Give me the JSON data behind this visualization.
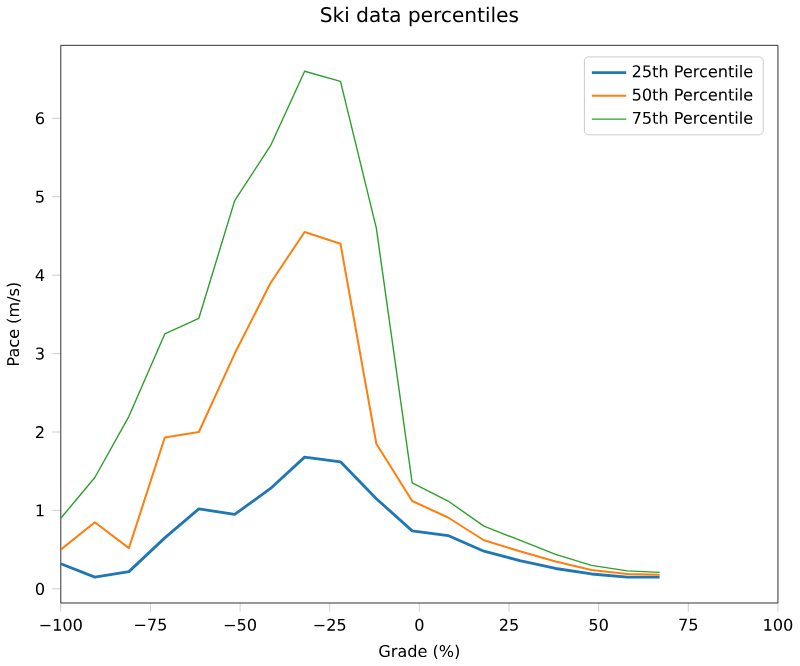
{
  "chart_data": {
    "type": "line",
    "title": "Ski data percentiles",
    "xlabel": "Grade (%)",
    "ylabel": "Pace (m/s)",
    "x": [
      -100,
      -90.5,
      -81,
      -71,
      -61.5,
      -51.5,
      -41.5,
      -32,
      -22,
      -12,
      -2,
      8,
      18,
      28,
      38,
      48,
      58,
      67
    ],
    "series": [
      {
        "name": "25th Percentile",
        "color": "#1f77b4",
        "values": [
          0.32,
          0.15,
          0.22,
          0.65,
          1.02,
          0.95,
          1.28,
          1.68,
          1.62,
          1.15,
          0.74,
          0.68,
          0.48,
          0.36,
          0.26,
          0.19,
          0.15,
          0.15
        ]
      },
      {
        "name": "50th Percentile",
        "color": "#ff7f0e",
        "values": [
          0.5,
          0.85,
          0.52,
          1.93,
          2.0,
          3.0,
          3.9,
          4.55,
          4.4,
          1.85,
          1.12,
          0.91,
          0.62,
          0.48,
          0.35,
          0.24,
          0.19,
          0.18
        ]
      },
      {
        "name": "75th Percentile",
        "color": "#2ca02c",
        "values": [
          0.9,
          1.42,
          2.2,
          3.25,
          3.45,
          4.95,
          5.65,
          6.6,
          6.47,
          4.6,
          1.35,
          1.12,
          0.8,
          0.62,
          0.44,
          0.3,
          0.23,
          0.21
        ]
      }
    ],
    "xlim": [
      -100,
      100
    ],
    "ylim": [
      -0.18,
      6.93
    ],
    "xticks": [
      {
        "value": -100,
        "label": "−100"
      },
      {
        "value": -75,
        "label": "−75"
      },
      {
        "value": -50,
        "label": "−50"
      },
      {
        "value": -25,
        "label": "−25"
      },
      0,
      25,
      50,
      75,
      100
    ],
    "yticks": [
      0,
      1,
      2,
      3,
      4,
      5,
      6
    ],
    "legend": "top right",
    "grid": false
  }
}
